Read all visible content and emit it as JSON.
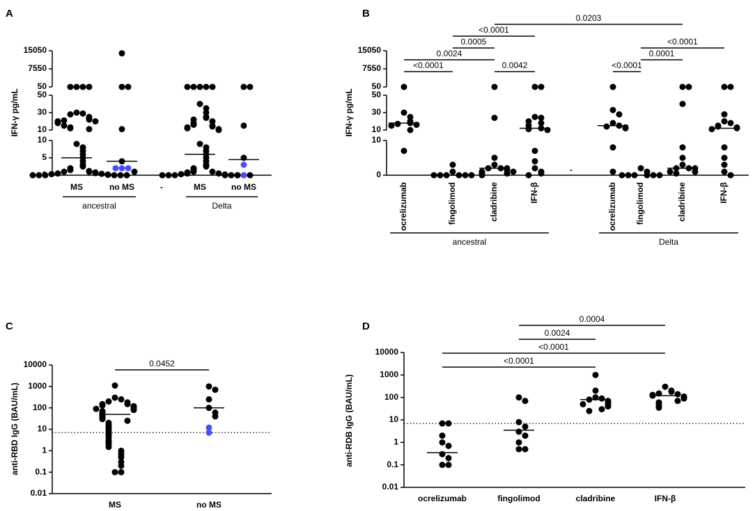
{
  "chart_data": [
    {
      "type": "dot",
      "panel": "A",
      "ylabel": "IFN-γ pg/mL",
      "color": "#000000",
      "categories": [
        "MS",
        "no MS",
        "-",
        "MS",
        "no MS"
      ],
      "values": [
        [
          50,
          50,
          50,
          50,
          30,
          29,
          28,
          25,
          24,
          23,
          22,
          21,
          20,
          20,
          19,
          18,
          15,
          13,
          12,
          11,
          9,
          8,
          7,
          6,
          5,
          4,
          3,
          2.5,
          2,
          1.5,
          1.2,
          1,
          1,
          0.8,
          0.6,
          0.5,
          0.4,
          0.3,
          0.2,
          0.1,
          0,
          0,
          0,
          0,
          0,
          0
        ],
        [
          14000,
          50,
          50,
          11,
          4,
          2,
          2,
          2,
          1
        ],
        [],
        [
          50,
          50,
          50,
          50,
          50,
          40,
          35,
          30,
          25,
          24,
          22,
          20,
          18,
          16,
          15,
          14,
          13,
          12,
          11,
          10,
          9,
          8,
          7,
          6,
          5,
          4,
          3,
          2.5,
          2,
          1.5,
          1,
          1,
          0.8,
          0.5,
          0.5,
          0.3,
          0.2,
          0,
          0,
          0,
          0,
          0,
          0
        ],
        [
          50,
          50,
          15,
          5,
          3,
          0,
          0,
          0
        ]
      ],
      "point_colors": [
        null,
        [
          "#000000",
          "#000000",
          "#000000",
          "#000000",
          "#000000",
          "#4a4ff5",
          "#4a4ff5",
          "#4a4ff5",
          "#000000"
        ],
        null,
        null,
        [
          "#000000",
          "#000000",
          "#000000",
          "#000000",
          "#4a4ff5",
          "#4a4ff5",
          "#000000",
          "#000000"
        ]
      ],
      "medians": [
        5,
        4,
        null,
        6,
        4.5
      ],
      "groups": [
        {
          "label": "ancestral",
          "from": 0,
          "to": 1
        },
        {
          "label": "Delta",
          "from": 3,
          "to": 4
        }
      ],
      "y_segments": [
        {
          "ylim": [
            0,
            10
          ],
          "yticks": [
            0,
            5,
            10
          ]
        },
        {
          "ylim": [
            10,
            50
          ],
          "yticks": [
            10,
            30,
            50
          ]
        },
        {
          "ylim": [
            50,
            15050
          ],
          "yticks": [
            50,
            7550,
            15050
          ]
        }
      ]
    },
    {
      "type": "dot",
      "panel": "B",
      "ylabel": "IFN-γ pg/mL",
      "color": "#000000",
      "categories": [
        "ocrelizumab",
        "fingolimod",
        "cladribine",
        "IFN-β",
        "-",
        "ocrelizumab",
        "fingolimod",
        "cladribine",
        "IFN-β"
      ],
      "values": [
        [
          50,
          30,
          25,
          20,
          18,
          17,
          16,
          15,
          10,
          7
        ],
        [
          3,
          1,
          0,
          0,
          0,
          0,
          0,
          0
        ],
        [
          50,
          24,
          5,
          3,
          2,
          2,
          2,
          1.5,
          1,
          1,
          0.5,
          0.5,
          0
        ],
        [
          50,
          50,
          25,
          24,
          20,
          18,
          15,
          12,
          11,
          10,
          7,
          4,
          2,
          1,
          0.5,
          0
        ],
        [],
        [
          50,
          33,
          28,
          18,
          15,
          14,
          13,
          12,
          8,
          1
        ],
        [
          2,
          1,
          0,
          0,
          0,
          0,
          0,
          0
        ],
        [
          50,
          50,
          40,
          8,
          5,
          3,
          2,
          2,
          2,
          1,
          1,
          0.5
        ],
        [
          50,
          50,
          28,
          20,
          18,
          15,
          14,
          13,
          12,
          11,
          8,
          5,
          3,
          1,
          0
        ]
      ],
      "medians": [
        18,
        0,
        2,
        12,
        null,
        15,
        0,
        2,
        12
      ],
      "groups": [
        {
          "label": "ancestral",
          "from": 0,
          "to": 3
        },
        {
          "label": "Delta",
          "from": 5,
          "to": 8
        }
      ],
      "comparisons": [
        {
          "from": 0,
          "to": 1,
          "label": "<0.0001"
        },
        {
          "from": 0,
          "to": 2,
          "label": "0.0024"
        },
        {
          "from": 1,
          "to": 2,
          "label": "0.0005"
        },
        {
          "from": 1,
          "to": 3,
          "label": "<0.0001"
        },
        {
          "from": 2,
          "to": 3,
          "label": "0.0042"
        },
        {
          "from": 2,
          "to": 7,
          "label": "0.0203"
        },
        {
          "from": 5,
          "to": 6,
          "label": "<0.0001"
        },
        {
          "from": 6,
          "to": 7,
          "label": "0.0001"
        },
        {
          "from": 6,
          "to": 8,
          "label": "<0.0001"
        }
      ],
      "y_segments": [
        {
          "ylim": [
            0,
            10
          ],
          "yticks": [
            0,
            10
          ]
        },
        {
          "ylim": [
            10,
            50
          ],
          "yticks": [
            10,
            30,
            50
          ]
        },
        {
          "ylim": [
            50,
            15050
          ],
          "yticks": [
            50,
            7550,
            15050
          ]
        }
      ]
    },
    {
      "type": "dot",
      "panel": "C",
      "ylabel": "anti-RBD IgG (BAU/mL)",
      "color": "#000000",
      "log": true,
      "categories": [
        "MS",
        "no MS"
      ],
      "values": [
        [
          1100,
          300,
          250,
          200,
          180,
          150,
          150,
          130,
          120,
          110,
          100,
          90,
          80,
          70,
          60,
          55,
          50,
          45,
          40,
          35,
          30,
          25,
          20,
          15,
          12,
          10,
          8,
          6,
          5,
          4,
          3,
          2.5,
          2,
          1.5,
          1,
          0.7,
          0.5,
          0.3,
          0.2,
          0.1,
          0.1
        ],
        [
          1000,
          700,
          250,
          100,
          60,
          40,
          12,
          7
        ]
      ],
      "point_colors": [
        null,
        [
          "#000000",
          "#000000",
          "#000000",
          "#000000",
          "#000000",
          "#000000",
          "#4a4ff5",
          "#4a4ff5"
        ]
      ],
      "medians": [
        50,
        100
      ],
      "reference_line": 7,
      "comparisons": [
        {
          "from": 0,
          "to": 1,
          "label": "0.0452"
        }
      ],
      "ylim": [
        0.01,
        10000
      ],
      "yticks": [
        0.01,
        0.1,
        1,
        10,
        100,
        1000,
        10000
      ]
    },
    {
      "type": "dot",
      "panel": "D",
      "ylabel": "anti-RDB IgG (BAU/mL)",
      "color": "#000000",
      "log": true,
      "categories": [
        "ocrelizumab",
        "fingolimod",
        "cladribine",
        "IFN-β"
      ],
      "values": [
        [
          7,
          7,
          2,
          1,
          0.7,
          0.3,
          0.2,
          0.1,
          0.1
        ],
        [
          100,
          70,
          8,
          5,
          3,
          2,
          1,
          0.5,
          0.5
        ],
        [
          1000,
          200,
          100,
          90,
          80,
          70,
          60,
          50,
          50,
          40,
          30,
          25
        ],
        [
          300,
          200,
          180,
          150,
          140,
          130,
          120,
          110,
          100,
          90,
          70,
          60,
          50,
          40,
          35
        ]
      ],
      "medians": [
        0.35,
        3.5,
        80,
        120
      ],
      "reference_line": 7,
      "comparisons": [
        {
          "from": 0,
          "to": 2,
          "label": "<0.0001"
        },
        {
          "from": 0,
          "to": 3,
          "label": "<0.0001"
        },
        {
          "from": 1,
          "to": 2,
          "label": "0.0024"
        },
        {
          "from": 1,
          "to": 3,
          "label": "0.0004"
        }
      ],
      "ylim": [
        0.01,
        10000
      ],
      "yticks": [
        0.01,
        0.1,
        1,
        10,
        100,
        1000,
        10000
      ]
    }
  ]
}
